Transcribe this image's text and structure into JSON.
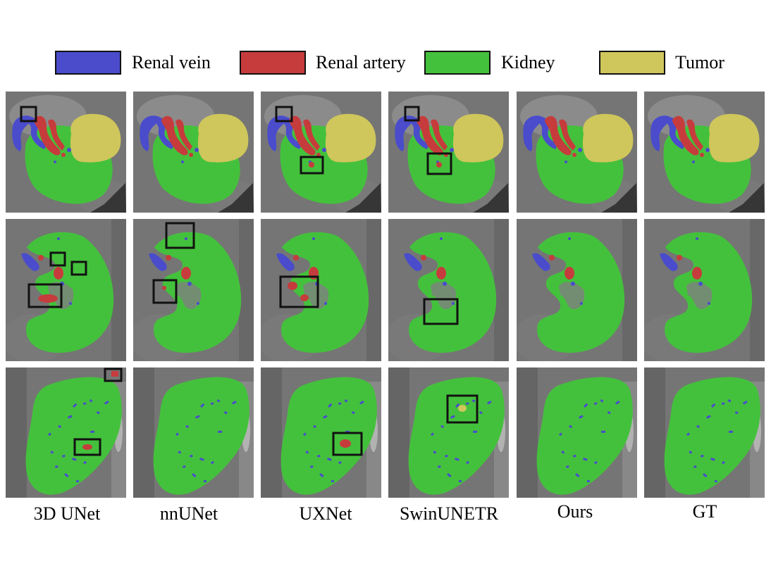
{
  "colors": {
    "renal_vein": "#4a4ccc",
    "renal_artery": "#c63c3c",
    "kidney": "#44c13c",
    "tumor": "#cfc65c",
    "box": "#111111"
  },
  "legend": [
    {
      "label": "Renal vein",
      "color_key": "renal_vein"
    },
    {
      "label": "Renal artery",
      "color_key": "renal_artery"
    },
    {
      "label": "Kidney",
      "color_key": "kidney"
    },
    {
      "label": "Tumor",
      "color_key": "tumor"
    }
  ],
  "columns": [
    "3D UNet",
    "nnUNet",
    "UXNet",
    "SwinUNETR",
    "Ours",
    "GT"
  ],
  "rows": 3
}
